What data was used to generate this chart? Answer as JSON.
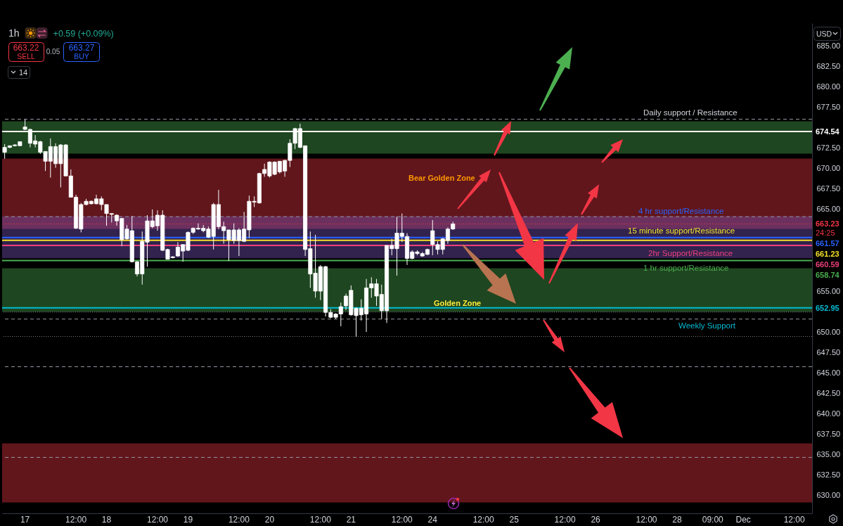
{
  "chart_data": {
    "type": "candlestick",
    "title": "1h",
    "subtitle": "+0.59 (+0.09%)",
    "ylabel": "USD",
    "annotations": [
      "663.22",
      "SELL",
      "0.05",
      "663.27",
      "BUY",
      "14",
      "24:25",
      {
        "text": "15 minute support/Resistance",
        "y": 661.23
      },
      {
        "text": "2hr Support/Resistance",
        "y": 660.59
      },
      {
        "text": "1 hr support/Resistance",
        "y": 658.74
      }
    ],
    "categories": [
      null,
      null,
      null,
      null,
      "17",
      null,
      null,
      null,
      null,
      null,
      null,
      null,
      null,
      null,
      "12:00",
      null,
      null,
      null,
      null,
      null,
      "18",
      null,
      null,
      null,
      null,
      null,
      null,
      null,
      null,
      null,
      "12:00",
      null,
      null,
      null,
      null,
      null,
      "19",
      null,
      null,
      null,
      null,
      null,
      null,
      null,
      null,
      null,
      "12:00",
      null,
      null,
      null,
      null,
      null,
      "20",
      null,
      null,
      null,
      null,
      null,
      null,
      null,
      null,
      null,
      "12:00",
      null,
      null,
      null,
      null,
      null,
      "21",
      null,
      null,
      null,
      null,
      null,
      null,
      null,
      null,
      null,
      "12:00",
      null,
      null,
      null,
      null,
      null,
      "24",
      null,
      null,
      null,
      null,
      null,
      null,
      null,
      null,
      null,
      "12:00",
      null,
      null,
      null,
      null,
      null,
      "25",
      null,
      null,
      null,
      null,
      null,
      null,
      null,
      null,
      null,
      "12:00",
      null,
      null,
      null,
      null,
      null,
      "26",
      null,
      null,
      null,
      null,
      null,
      null,
      null,
      null,
      null,
      "12:00",
      null,
      null,
      null,
      null,
      null,
      "28",
      null,
      null,
      null,
      null,
      null,
      null,
      "09:00",
      null,
      null,
      null,
      null,
      null,
      "Dec",
      null,
      null,
      null,
      null,
      null,
      null,
      null,
      null,
      null,
      "12:00",
      null,
      null,
      null
    ],
    "ohlc": [
      [
        672.0,
        673.0,
        671.2,
        672.6
      ],
      [
        672.6,
        672.8,
        672.5,
        672.8
      ],
      [
        672.8,
        673.0,
        672.7,
        672.9
      ],
      [
        672.8,
        673.3,
        672.8,
        673.3
      ],
      [
        674.8,
        676.0,
        674.7,
        675.1
      ],
      [
        673.1,
        674.9,
        672.6,
        674.8
      ],
      [
        673.0,
        674.1,
        672.6,
        673.4
      ],
      [
        672.0,
        673.4,
        671.8,
        673.3
      ],
      [
        670.9,
        672.1,
        669.7,
        672.1
      ],
      [
        670.9,
        673.7,
        668.9,
        672.7
      ],
      [
        670.6,
        673.1,
        670.1,
        672.7
      ],
      [
        670.6,
        673.0,
        667.7,
        672.9
      ],
      [
        669.1,
        673.0,
        669.1,
        672.9
      ],
      [
        666.5,
        669.9,
        666.5,
        669.1
      ],
      [
        662.7,
        666.8,
        662.6,
        666.5
      ],
      [
        662.6,
        665.8,
        662.2,
        665.6
      ],
      [
        665.6,
        666.3,
        665.5,
        666.0
      ],
      [
        665.7,
        666.1,
        665.6,
        666.0
      ],
      [
        665.7,
        666.8,
        665.6,
        666.3
      ],
      [
        665.6,
        666.6,
        664.9,
        666.3
      ],
      [
        664.5,
        665.6,
        663.0,
        665.6
      ],
      [
        664.4,
        664.5,
        663.4,
        664.5
      ],
      [
        663.6,
        664.4,
        663.0,
        664.3
      ],
      [
        661.3,
        663.9,
        660.5,
        663.9
      ],
      [
        661.4,
        663.1,
        661.3,
        662.6
      ],
      [
        658.6,
        664.2,
        658.5,
        662.4
      ],
      [
        657.1,
        658.7,
        656.8,
        658.6
      ],
      [
        657.1,
        662.3,
        655.8,
        661.1
      ],
      [
        661.0,
        664.3,
        658.0,
        663.6
      ],
      [
        662.9,
        665.0,
        662.7,
        663.6
      ],
      [
        663.0,
        664.9,
        662.4,
        664.3
      ],
      [
        660.0,
        664.9,
        659.9,
        664.3
      ],
      [
        658.9,
        660.2,
        658.9,
        660.1
      ],
      [
        659.1,
        659.3,
        659.0,
        659.2
      ],
      [
        659.3,
        661.0,
        659.2,
        660.4
      ],
      [
        659.9,
        660.7,
        658.6,
        660.7
      ],
      [
        660.0,
        662.3,
        659.9,
        662.2
      ],
      [
        662.2,
        662.8,
        662.0,
        662.7
      ],
      [
        662.6,
        663.3,
        662.5,
        662.7
      ],
      [
        662.4,
        663.1,
        662.2,
        662.7
      ],
      [
        661.6,
        662.9,
        661.5,
        662.6
      ],
      [
        661.7,
        665.8,
        660.1,
        665.6
      ],
      [
        662.9,
        667.4,
        662.6,
        665.6
      ],
      [
        662.4,
        663.5,
        660.8,
        662.9
      ],
      [
        661.3,
        662.5,
        658.7,
        662.5
      ],
      [
        661.2,
        663.3,
        660.8,
        662.5
      ],
      [
        661.2,
        662.7,
        659.3,
        662.5
      ],
      [
        661.1,
        664.7,
        661.0,
        662.6
      ],
      [
        662.5,
        666.7,
        661.5,
        666.0
      ],
      [
        665.9,
        666.6,
        665.3,
        666.0
      ],
      [
        665.8,
        669.5,
        665.7,
        669.4
      ],
      [
        669.4,
        670.6,
        669.0,
        669.9
      ],
      [
        669.1,
        670.9,
        668.9,
        670.8
      ],
      [
        669.3,
        670.9,
        669.2,
        670.8
      ],
      [
        669.6,
        670.9,
        669.4,
        670.9
      ],
      [
        669.7,
        671.1,
        669.0,
        671.0
      ],
      [
        671.0,
        673.6,
        670.2,
        673.1
      ],
      [
        673.1,
        675.0,
        672.4,
        674.9
      ],
      [
        672.6,
        675.5,
        672.5,
        674.9
      ],
      [
        660.1,
        672.8,
        659.3,
        672.8
      ],
      [
        657.1,
        662.3,
        655.4,
        660.2
      ],
      [
        655.0,
        661.9,
        654.2,
        657.2
      ],
      [
        655.0,
        658.2,
        653.9,
        658.0
      ],
      [
        652.4,
        658.1,
        651.9,
        658.0
      ],
      [
        651.8,
        652.8,
        651.7,
        652.4
      ],
      [
        651.8,
        652.3,
        651.6,
        652.2
      ],
      [
        652.2,
        653.6,
        650.7,
        653.1
      ],
      [
        653.2,
        654.7,
        652.7,
        654.4
      ],
      [
        652.1,
        655.7,
        652.0,
        655.1
      ],
      [
        652.0,
        653.0,
        649.4,
        652.9
      ],
      [
        652.1,
        654.0,
        651.4,
        652.9
      ],
      [
        652.2,
        656.5,
        650.0,
        655.4
      ],
      [
        655.4,
        656.7,
        654.2,
        655.9
      ],
      [
        654.4,
        656.5,
        653.2,
        655.9
      ],
      [
        652.6,
        655.8,
        651.6,
        654.6
      ],
      [
        652.6,
        660.6,
        651.1,
        660.6
      ],
      [
        660.2,
        661.4,
        659.4,
        660.6
      ],
      [
        660.2,
        664.1,
        656.9,
        662.1
      ],
      [
        661.7,
        664.5,
        661.0,
        662.1
      ],
      [
        659.0,
        662.1,
        658.2,
        661.7
      ],
      [
        659.0,
        660.0,
        658.9,
        659.8
      ],
      [
        659.6,
        660.0,
        659.4,
        659.8
      ],
      [
        659.3,
        659.8,
        659.2,
        659.6
      ],
      [
        659.5,
        660.2,
        659.4,
        660.1
      ],
      [
        660.7,
        663.7,
        659.4,
        662.4
      ],
      [
        660.1,
        661.1,
        659.5,
        660.7
      ],
      [
        660.1,
        661.5,
        659.5,
        661.4
      ],
      [
        661.2,
        662.8,
        660.8,
        662.6
      ],
      [
        662.6,
        663.5,
        662.5,
        663.23
      ],
      null,
      null,
      null,
      null,
      null,
      null,
      null,
      null,
      null,
      null,
      null,
      null,
      null,
      null,
      null,
      null,
      null,
      null,
      null,
      null,
      null,
      null,
      null,
      null,
      null,
      null,
      null,
      null,
      null,
      null,
      null,
      null,
      null,
      null,
      null,
      null,
      null,
      null,
      null,
      null,
      null,
      null,
      null,
      null,
      null,
      null,
      null,
      null,
      null,
      null,
      null,
      null,
      null,
      null,
      null,
      null,
      null,
      null,
      null,
      null,
      null,
      null,
      null,
      null,
      null,
      null,
      null,
      null,
      null,
      null
    ],
    "color": "#ffffff",
    "ylim": [
      627.8,
      687.8
    ],
    "yticks": [
      {
        "value": 630,
        "label": "630.00"
      },
      {
        "value": 632.5,
        "label": "632.50"
      },
      {
        "value": 635,
        "label": "635.00"
      },
      {
        "value": 637.5,
        "label": "637.50"
      },
      {
        "value": 640,
        "label": "640.00"
      },
      {
        "value": 642.5,
        "label": "642.50"
      },
      {
        "value": 645,
        "label": "645.00"
      },
      {
        "value": 647.5,
        "label": "647.50"
      },
      {
        "value": 650,
        "label": "650.00"
      },
      {
        "value": 655,
        "label": "655.00"
      },
      {
        "value": 665,
        "label": "665.00"
      },
      {
        "value": 667.5,
        "label": "667.50"
      },
      {
        "value": 670,
        "label": "670.00"
      },
      {
        "value": 672.5,
        "label": "672.50"
      },
      {
        "value": 677.5,
        "label": "677.50"
      },
      {
        "value": 680,
        "label": "680.00"
      },
      {
        "value": 682.5,
        "label": "682.50"
      },
      {
        "value": 685,
        "label": "685.00"
      }
    ],
    "ref_lines": [
      {
        "axis": "y",
        "value": 674.54,
        "label": "674.54",
        "color": "#ffffff",
        "line_style": "solid"
      },
      {
        "axis": "y",
        "value": 663.23,
        "label": "663.23",
        "color": "#f23645",
        "line_style": "dotted"
      },
      {
        "axis": "y",
        "value": 661.57,
        "label": "661.57",
        "color": "#2962ff",
        "line_style": "solid"
      },
      {
        "axis": "y",
        "value": 661.23,
        "label": "661.23",
        "color": "#f5e12a",
        "line_style": "solid"
      },
      {
        "axis": "y",
        "value": 660.59,
        "label": "660.59",
        "color": "#ec407a",
        "line_style": "solid"
      },
      {
        "axis": "y",
        "value": 658.74,
        "label": "658.74",
        "color": "#4caf50",
        "line_style": "solid"
      },
      {
        "axis": "y",
        "value": 652.95,
        "label": "652.95",
        "color": "#00bcd4",
        "line_style": "solid"
      },
      {
        "axis": "y",
        "value": 676.05,
        "label": "Daily support / Resistance",
        "color": "#9598a1",
        "line_style": "dashed"
      },
      {
        "axis": "y",
        "value": 664.12,
        "label": "4 hr support/Resistance",
        "color": "#9598a1",
        "line_style": "dashed"
      },
      {
        "axis": "y",
        "value": 652.44,
        "color": "#787b86",
        "line_style": "dotted"
      },
      {
        "axis": "y",
        "value": 651.58,
        "label": "Weekly Support",
        "color": "#9598a1",
        "line_style": "dashed"
      },
      {
        "axis": "y",
        "value": 649.45,
        "color": "#787b86",
        "line_style": "dotted"
      },
      {
        "axis": "y",
        "value": 645.75,
        "color": "#9598a1",
        "line_style": "dashed"
      },
      {
        "axis": "y",
        "value": 634.65,
        "color": "#9598a1",
        "line_style": "dashed"
      }
    ],
    "bands": [
      {
        "axis": "y",
        "from": 671.83,
        "to": 675.79,
        "color": "#4caf50"
      },
      {
        "axis": "y",
        "from": 662.62,
        "to": 671.23,
        "label": "Bear Golden Zone",
        "color": "#f23645"
      },
      {
        "axis": "y",
        "from": 659.03,
        "to": 664.14,
        "color": "#7e57c2"
      },
      {
        "axis": "y",
        "from": 652.46,
        "to": 657.8,
        "label": "Golden Zone",
        "color": "#4caf50"
      },
      {
        "axis": "y",
        "from": 629.14,
        "to": 636.37,
        "color": "#f23645"
      }
    ]
  }
}
